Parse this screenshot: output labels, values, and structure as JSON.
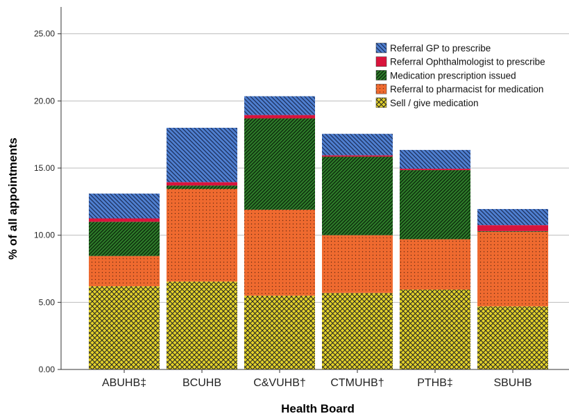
{
  "chart_data": {
    "type": "bar",
    "stacked": true,
    "title": "",
    "xlabel": "Health Board",
    "ylabel": "% of all appointments",
    "ylim": [
      0,
      27
    ],
    "yticks": [
      "0.00",
      "5.00",
      "10.00",
      "15.00",
      "20.00",
      "25.00"
    ],
    "grid": true,
    "legend_position": "top-right",
    "categories": [
      "ABUHB‡",
      "BCUHB",
      "C&VUHB†",
      "CTMUHB†",
      "PTHB‡",
      "SBUHB"
    ],
    "series": [
      {
        "name": "Sell / give medication",
        "color": "#e3d22a",
        "pattern": "crosshatch",
        "values": [
          6.2,
          6.55,
          5.5,
          5.7,
          5.95,
          4.7
        ]
      },
      {
        "name": "Referral to pharmacist for medication",
        "color": "#ef6a2f",
        "pattern": "dots",
        "values": [
          2.25,
          6.9,
          6.4,
          4.3,
          3.75,
          5.55
        ]
      },
      {
        "name": "Medication prescription issued",
        "color": "#2e7d2a",
        "pattern": "diagonal-dense",
        "values": [
          2.55,
          0.25,
          6.8,
          5.85,
          5.15,
          0.05
        ]
      },
      {
        "name": "Referral Ophthalmologist to prescribe",
        "color": "#d9143c",
        "pattern": "solid",
        "values": [
          0.25,
          0.25,
          0.25,
          0.1,
          0.1,
          0.45
        ]
      },
      {
        "name": "Referral GP to prescribe",
        "color": "#4f7fd0",
        "pattern": "diagonal",
        "values": [
          1.85,
          4.05,
          1.4,
          1.6,
          1.4,
          1.2
        ]
      }
    ],
    "legend_order": [
      "Referral GP to prescribe",
      "Referral Ophthalmologist to prescribe",
      "Medication prescription issued",
      "Referral to pharmacist for medication",
      "Sell / give medication"
    ]
  }
}
